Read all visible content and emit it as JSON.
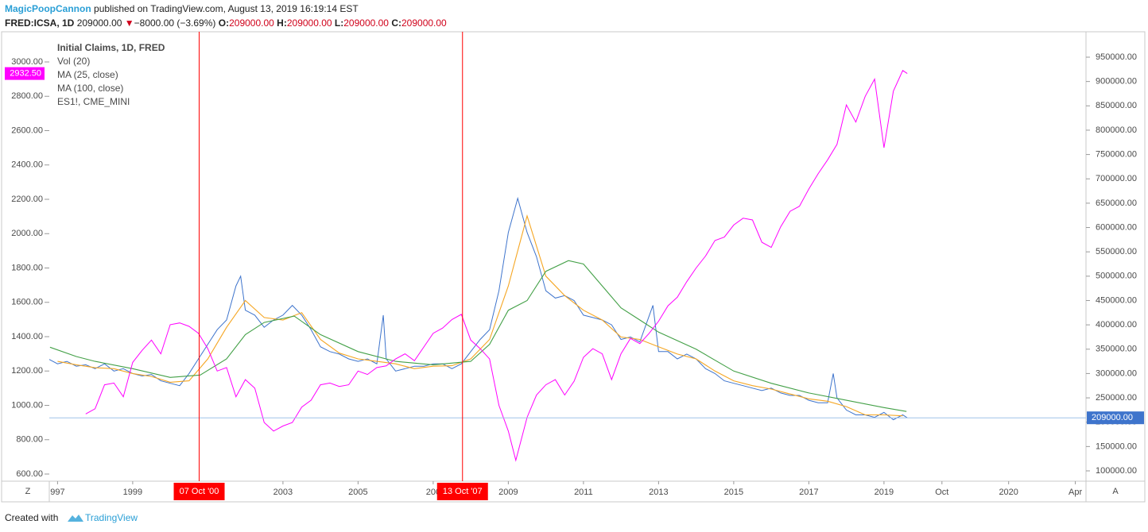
{
  "header": {
    "author": "MagicPoopCannon",
    "published": "published on TradingView.com, August 13, 2019 16:19:14 EST"
  },
  "quote": {
    "symbol": "FRED:ICSA, 1D",
    "close": "209000.00",
    "arrow": "▼",
    "change": "−8000.00 (−3.69%)",
    "fields": [
      {
        "label": "O:",
        "value": "209000.00"
      },
      {
        "label": "H:",
        "value": "209000.00"
      },
      {
        "label": "L:",
        "value": "209000.00"
      },
      {
        "label": "C:",
        "value": "209000.00"
      }
    ]
  },
  "footer": {
    "created": "Created with",
    "brand": "TradingView"
  },
  "axis_buttons": [
    "Z",
    "A"
  ],
  "chart_data": {
    "type": "line",
    "grid": false,
    "legend_extra": "Vol (20)",
    "xlim": [
      1996.78,
      2020.29
    ],
    "xticks": [
      {
        "value": 1997,
        "label": "997"
      },
      1999,
      2003,
      2005,
      {
        "value": 2007,
        "label": "200"
      },
      2009,
      2011,
      2013,
      2015,
      2017,
      2019,
      {
        "value": 2019.75,
        "label": "Oct"
      },
      2020,
      {
        "value": 2020.25,
        "label": "Apr"
      }
    ],
    "ylim": [
      558.4,
      3166.5
    ],
    "yticks": [
      {
        "value": 600,
        "label": "600.00"
      },
      {
        "value": 800,
        "label": "800.00"
      },
      {
        "value": 1000,
        "label": "1000.00"
      },
      {
        "value": 1200,
        "label": "1200.00"
      },
      {
        "value": 1400,
        "label": "1400.00"
      },
      {
        "value": 1600,
        "label": "1600.00"
      },
      {
        "value": 1800,
        "label": "1800.00"
      },
      {
        "value": 2000,
        "label": "2000.00"
      },
      {
        "value": 2200,
        "label": "2200.00"
      },
      {
        "value": 2400,
        "label": "2400.00"
      },
      {
        "value": 2600,
        "label": "2600.00"
      },
      {
        "value": 2800,
        "label": "2800.00"
      },
      {
        "value": 3000,
        "label": "3000.00"
      }
    ],
    "y2lim": [
      78790,
      998945
    ],
    "y2ticks": [
      {
        "value": 100000,
        "label": "100000.00"
      },
      {
        "value": 150000,
        "label": "150000.00"
      },
      {
        "value": 200000,
        "label": "200000.00"
      },
      {
        "value": 250000,
        "label": "250000.00"
      },
      {
        "value": 300000,
        "label": "300000.00"
      },
      {
        "value": 350000,
        "label": "350000.00"
      },
      {
        "value": 400000,
        "label": "400000.00"
      },
      {
        "value": 450000,
        "label": "450000.00"
      },
      {
        "value": 500000,
        "label": "500000.00"
      },
      {
        "value": 550000,
        "label": "550000.00"
      },
      {
        "value": 600000,
        "label": "600000.00"
      },
      {
        "value": 650000,
        "label": "650000.00"
      },
      {
        "value": 700000,
        "label": "700000.00"
      },
      {
        "value": 750000,
        "label": "750000.00"
      },
      {
        "value": 800000,
        "label": "800000.00"
      },
      {
        "value": 850000,
        "label": "850000.00"
      },
      {
        "value": 900000,
        "label": "900000.00"
      },
      {
        "value": 950000,
        "label": "950000.00"
      }
    ],
    "annotations": [
      {
        "x": 2000.77,
        "label": "07 Oct '00",
        "color": "#ff0000"
      },
      {
        "x": 2007.78,
        "label": "13 Oct '07",
        "color": "#ff0000"
      }
    ],
    "series": [
      {
        "name": "Initial Claims, 1D, FRED",
        "color": "#3e74cc",
        "axis": "y2",
        "last_label": "209000.00",
        "x": [
          1996.75,
          1997,
          1997.25,
          1997.5,
          1997.75,
          1998,
          1998.25,
          1998.5,
          1998.75,
          1999,
          1999.25,
          1999.5,
          1999.75,
          2000,
          2000.25,
          2000.5,
          2000.75,
          2001,
          2001.25,
          2001.5,
          2001.75,
          2001.875,
          2002,
          2002.25,
          2002.5,
          2002.75,
          2003,
          2003.25,
          2003.5,
          2003.75,
          2004,
          2004.25,
          2004.5,
          2004.75,
          2005,
          2005.25,
          2005.5,
          2005.67,
          2005.75,
          2006,
          2006.25,
          2006.5,
          2006.75,
          2007,
          2007.25,
          2007.5,
          2007.75,
          2008,
          2008.25,
          2008.5,
          2008.75,
          2009,
          2009.25,
          2009.5,
          2009.75,
          2010,
          2010.25,
          2010.5,
          2010.75,
          2011,
          2011.25,
          2011.5,
          2011.75,
          2012,
          2012.25,
          2012.5,
          2012.85,
          2013,
          2013.25,
          2013.5,
          2013.75,
          2014,
          2014.25,
          2014.5,
          2014.75,
          2015,
          2015.25,
          2015.5,
          2015.75,
          2016,
          2016.25,
          2016.5,
          2016.75,
          2017,
          2017.25,
          2017.5,
          2017.65,
          2017.75,
          2018,
          2018.25,
          2018.5,
          2018.75,
          2019,
          2019.25,
          2019.5,
          2019.62
        ],
        "values": [
          330000,
          320000,
          325000,
          315000,
          318000,
          310000,
          320000,
          305000,
          310000,
          300000,
          295000,
          298000,
          285000,
          280000,
          275000,
          300000,
          330000,
          360000,
          390000,
          410000,
          480000,
          500000,
          430000,
          420000,
          395000,
          410000,
          420000,
          440000,
          420000,
          390000,
          355000,
          345000,
          340000,
          330000,
          325000,
          330000,
          320000,
          420000,
          330000,
          305000,
          310000,
          315000,
          315000,
          320000,
          320000,
          310000,
          320000,
          345000,
          370000,
          390000,
          470000,
          590000,
          660000,
          590000,
          540000,
          470000,
          455000,
          460000,
          450000,
          420000,
          415000,
          410000,
          400000,
          370000,
          375000,
          365000,
          440000,
          345000,
          345000,
          330000,
          340000,
          330000,
          310000,
          300000,
          285000,
          280000,
          275000,
          270000,
          265000,
          270000,
          260000,
          255000,
          255000,
          245000,
          240000,
          240000,
          300000,
          250000,
          225000,
          215000,
          215000,
          210000,
          220000,
          205000,
          215000,
          209000
        ]
      },
      {
        "name": "MA (25, close)",
        "color": "#f5a623",
        "axis": "y2",
        "x": [
          1997,
          1997.5,
          1998,
          1998.5,
          1999,
          1999.5,
          2000,
          2000.5,
          2001,
          2001.5,
          2002,
          2002.5,
          2003,
          2003.5,
          2004,
          2004.5,
          2005,
          2005.5,
          2006,
          2006.5,
          2007,
          2007.5,
          2008,
          2008.5,
          2009,
          2009.5,
          2010,
          2010.5,
          2011,
          2011.5,
          2012,
          2012.5,
          2013,
          2013.5,
          2014,
          2014.5,
          2015,
          2015.5,
          2016,
          2016.5,
          2017,
          2017.5,
          2018,
          2018.5,
          2019,
          2019.5
        ],
        "values": [
          325000,
          318000,
          312000,
          310000,
          300000,
          294000,
          282000,
          285000,
          330000,
          395000,
          450000,
          415000,
          410000,
          425000,
          370000,
          342000,
          330000,
          325000,
          320000,
          310000,
          315000,
          316000,
          330000,
          370000,
          480000,
          624000,
          500000,
          460000,
          430000,
          410000,
          375000,
          370000,
          355000,
          340000,
          330000,
          305000,
          285000,
          275000,
          268000,
          258000,
          248000,
          243000,
          232000,
          215000,
          215000,
          213000
        ]
      },
      {
        "name": "MA (100, close)",
        "color": "#43a047",
        "axis": "y2",
        "x": [
          1996.8,
          1997.5,
          1998,
          1999,
          2000,
          2000.8,
          2001.5,
          2002,
          2002.5,
          2003.3,
          2004,
          2005,
          2006,
          2007,
          2008,
          2008.5,
          2009,
          2009.5,
          2010,
          2010.6,
          2011,
          2011.5,
          2012,
          2012.5,
          2013,
          2014,
          2015,
          2016,
          2017,
          2018,
          2019,
          2019.6
        ],
        "values": [
          354000,
          335000,
          325000,
          310000,
          292000,
          297000,
          330000,
          380000,
          405000,
          418000,
          380000,
          345000,
          325000,
          318000,
          325000,
          360000,
          430000,
          450000,
          510000,
          532000,
          525000,
          480000,
          435000,
          410000,
          385000,
          350000,
          305000,
          280000,
          260000,
          245000,
          230000,
          222000
        ]
      },
      {
        "name": "ES1!, CME_MINI",
        "color": "#ff00ff",
        "axis": "y",
        "last_label": "2932.50",
        "x": [
          1997.75,
          1998,
          1998.25,
          1998.5,
          1998.75,
          1999,
          1999.25,
          1999.5,
          1999.75,
          2000,
          2000.25,
          2000.5,
          2000.75,
          2001,
          2001.25,
          2001.5,
          2001.75,
          2002,
          2002.25,
          2002.5,
          2002.75,
          2003,
          2003.25,
          2003.5,
          2003.75,
          2004,
          2004.25,
          2004.5,
          2004.75,
          2005,
          2005.25,
          2005.5,
          2005.75,
          2006,
          2006.25,
          2006.5,
          2006.75,
          2007,
          2007.25,
          2007.5,
          2007.75,
          2008,
          2008.25,
          2008.5,
          2008.75,
          2009,
          2009.2,
          2009.5,
          2009.75,
          2010,
          2010.25,
          2010.5,
          2010.75,
          2011,
          2011.25,
          2011.5,
          2011.75,
          2012,
          2012.25,
          2012.5,
          2012.75,
          2013,
          2013.25,
          2013.5,
          2013.75,
          2014,
          2014.25,
          2014.5,
          2014.75,
          2015,
          2015.25,
          2015.5,
          2015.75,
          2016,
          2016.25,
          2016.5,
          2016.75,
          2017,
          2017.25,
          2017.5,
          2017.75,
          2018,
          2018.25,
          2018.5,
          2018.75,
          2019,
          2019.25,
          2019.5,
          2019.62
        ],
        "values": [
          950,
          980,
          1120,
          1130,
          1050,
          1250,
          1320,
          1380,
          1300,
          1470,
          1480,
          1460,
          1420,
          1330,
          1200,
          1220,
          1050,
          1150,
          1100,
          900,
          850,
          880,
          900,
          990,
          1030,
          1120,
          1130,
          1110,
          1120,
          1200,
          1180,
          1220,
          1230,
          1270,
          1300,
          1260,
          1340,
          1420,
          1450,
          1500,
          1530,
          1380,
          1330,
          1270,
          1000,
          850,
          680,
          930,
          1060,
          1120,
          1150,
          1060,
          1140,
          1280,
          1330,
          1300,
          1150,
          1300,
          1390,
          1360,
          1420,
          1490,
          1580,
          1630,
          1720,
          1800,
          1870,
          1960,
          1980,
          2050,
          2090,
          2080,
          1950,
          1920,
          2040,
          2130,
          2160,
          2260,
          2350,
          2430,
          2520,
          2750,
          2650,
          2800,
          2900,
          2500,
          2830,
          2950,
          2932.5
        ]
      }
    ]
  }
}
